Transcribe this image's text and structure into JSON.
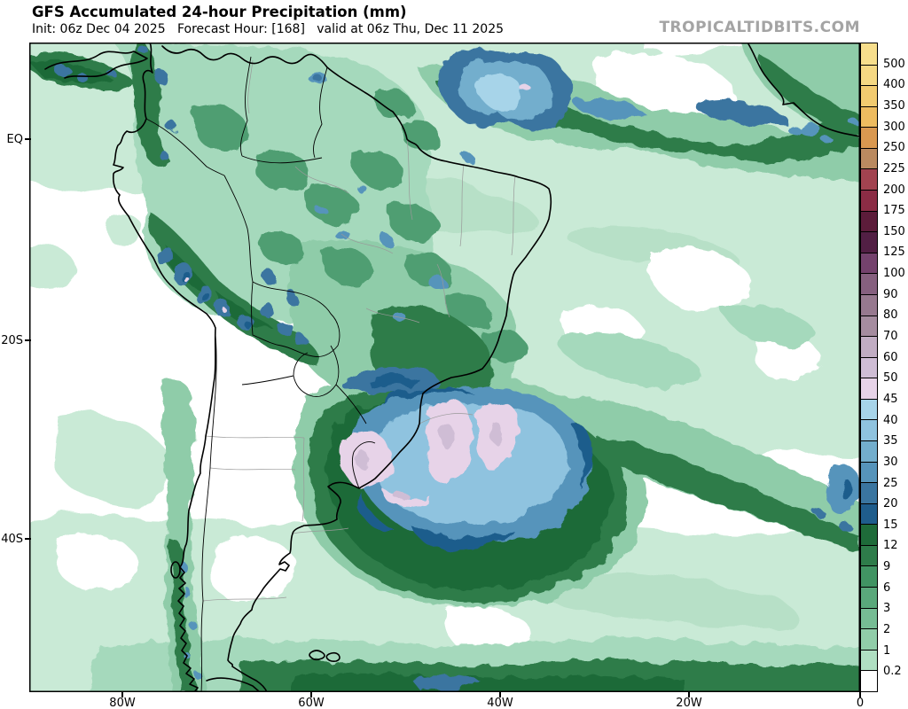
{
  "header": {
    "title": "GFS Accumulated 24-hour Precipitation (mm)",
    "subtitle": "Init: 06z Dec 04 2025   Forecast Hour: [168]   valid at 06z Thu, Dec 11 2025",
    "watermark": "TROPICALTIDBITS.COM"
  },
  "axes": {
    "lat_labels": [
      "EQ",
      "20S",
      "40S"
    ],
    "lon_labels": [
      "80W",
      "60W",
      "40W",
      "20W",
      "0"
    ]
  },
  "colorbar": {
    "tick_labels": [
      "500",
      "400",
      "350",
      "300",
      "250",
      "225",
      "200",
      "175",
      "150",
      "125",
      "100",
      "90",
      "80",
      "70",
      "60",
      "50",
      "45",
      "40",
      "35",
      "30",
      "25",
      "20",
      "15",
      "12",
      "9",
      "6",
      "3",
      "2",
      "1",
      "0.2"
    ],
    "bottom_label": "0",
    "segment_colors_top_to_bottom": [
      "#F7DE8C",
      "#F5D883",
      "#F2CB70",
      "#EEBC60",
      "#D99850",
      "#BA8A60",
      "#A24350",
      "#8B2C45",
      "#5C1C3A",
      "#521F44",
      "#74426D",
      "#86607F",
      "#97798F",
      "#A58C9F",
      "#C1ADC3",
      "#CFBDD5",
      "#E7D3E8",
      "#A7D4E9",
      "#8FC3DF",
      "#73AECD",
      "#5694BB",
      "#3A75A0",
      "#1F5D8C",
      "#1E6B39",
      "#2E7C4A",
      "#419463",
      "#5AA87B",
      "#76BC94",
      "#91CDA9",
      "#AFDFC2",
      "#FFFFFF"
    ]
  }
}
